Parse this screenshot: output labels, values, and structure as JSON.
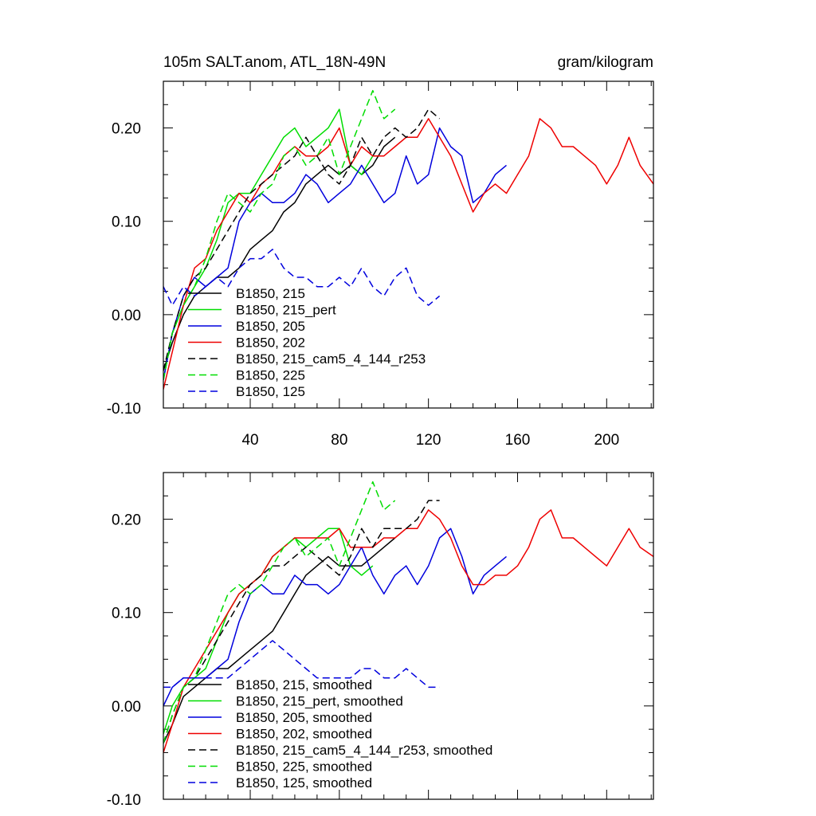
{
  "chart_data": [
    {
      "type": "line",
      "title_left": "105m SALT.anom, ATL_18N-49N",
      "title_right": "gram/kilogram",
      "xlabel": "",
      "ylabel": "",
      "xlim": [
        1,
        221
      ],
      "ylim": [
        -0.1,
        0.25
      ],
      "xticks": [
        40,
        80,
        120,
        160,
        200
      ],
      "xtick_labels": [
        "40",
        "80",
        "120",
        "160",
        "200"
      ],
      "yticks": [
        -0.1,
        0.0,
        0.1,
        0.2
      ],
      "ytick_labels": [
        "-0.10",
        "0.00",
        "0.10",
        "0.20"
      ],
      "legend_position": "lower-left",
      "series": [
        {
          "name": "B1850, 215",
          "color": "#000000",
          "dash": "solid",
          "x": [
            1,
            5,
            10,
            15,
            20,
            25,
            30,
            35,
            40,
            45,
            50,
            55,
            60,
            65,
            70,
            75,
            80,
            85,
            90,
            95,
            100,
            105
          ],
          "y": [
            -0.06,
            -0.03,
            0.0,
            0.02,
            0.03,
            0.04,
            0.04,
            0.05,
            0.07,
            0.08,
            0.09,
            0.11,
            0.12,
            0.14,
            0.15,
            0.16,
            0.15,
            0.16,
            0.15,
            0.16,
            0.18,
            0.19
          ]
        },
        {
          "name": "B1850, 215_pert",
          "color": "#00dd00",
          "dash": "solid",
          "x": [
            1,
            5,
            10,
            15,
            20,
            25,
            30,
            35,
            40,
            45,
            50,
            55,
            60,
            65,
            70,
            75,
            80,
            85,
            90,
            95
          ],
          "y": [
            -0.07,
            -0.02,
            0.01,
            0.03,
            0.05,
            0.08,
            0.12,
            0.13,
            0.13,
            0.15,
            0.17,
            0.19,
            0.2,
            0.18,
            0.19,
            0.2,
            0.22,
            0.16,
            0.15,
            0.17
          ]
        },
        {
          "name": "B1850, 205",
          "color": "#0000dd",
          "dash": "solid",
          "x": [
            1,
            5,
            10,
            15,
            20,
            25,
            30,
            35,
            40,
            45,
            50,
            55,
            60,
            65,
            70,
            75,
            80,
            85,
            90,
            95,
            100,
            105,
            110,
            115,
            120,
            125,
            130,
            135,
            140,
            145,
            150,
            155
          ],
          "y": [
            -0.07,
            -0.02,
            0.02,
            0.04,
            0.03,
            0.04,
            0.05,
            0.1,
            0.12,
            0.13,
            0.12,
            0.12,
            0.13,
            0.15,
            0.14,
            0.12,
            0.13,
            0.14,
            0.16,
            0.14,
            0.12,
            0.13,
            0.17,
            0.14,
            0.15,
            0.2,
            0.18,
            0.17,
            0.12,
            0.13,
            0.15,
            0.16
          ]
        },
        {
          "name": "B1850, 202",
          "color": "#ee0000",
          "dash": "solid",
          "x": [
            1,
            5,
            10,
            15,
            20,
            25,
            30,
            35,
            40,
            45,
            50,
            55,
            60,
            65,
            70,
            75,
            80,
            85,
            90,
            95,
            100,
            105,
            110,
            115,
            120,
            125,
            130,
            135,
            140,
            145,
            150,
            155,
            160,
            165,
            170,
            175,
            180,
            185,
            190,
            195,
            200,
            205,
            210,
            215,
            221
          ],
          "y": [
            -0.08,
            -0.04,
            0.01,
            0.05,
            0.06,
            0.09,
            0.11,
            0.13,
            0.12,
            0.14,
            0.15,
            0.17,
            0.18,
            0.17,
            0.17,
            0.18,
            0.2,
            0.16,
            0.18,
            0.17,
            0.17,
            0.18,
            0.19,
            0.19,
            0.21,
            0.19,
            0.17,
            0.14,
            0.11,
            0.13,
            0.14,
            0.13,
            0.15,
            0.17,
            0.21,
            0.2,
            0.18,
            0.18,
            0.17,
            0.16,
            0.14,
            0.16,
            0.19,
            0.16,
            0.14
          ]
        },
        {
          "name": "B1850, 215_cam5_4_144_r253",
          "color": "#000000",
          "dash": "dashed",
          "x": [
            1,
            5,
            10,
            15,
            20,
            25,
            30,
            35,
            40,
            45,
            50,
            55,
            60,
            65,
            70,
            75,
            80,
            85,
            90,
            95,
            100,
            105,
            110,
            115,
            120,
            125
          ],
          "y": [
            -0.06,
            -0.02,
            0.02,
            0.04,
            0.05,
            0.07,
            0.09,
            0.11,
            0.13,
            0.14,
            0.15,
            0.16,
            0.17,
            0.19,
            0.17,
            0.15,
            0.14,
            0.16,
            0.19,
            0.17,
            0.19,
            0.2,
            0.19,
            0.2,
            0.22,
            0.21
          ]
        },
        {
          "name": "B1850, 225",
          "color": "#00dd00",
          "dash": "dashed",
          "x": [
            1,
            5,
            10,
            15,
            20,
            25,
            30,
            35,
            40,
            45,
            50,
            55,
            60,
            65,
            70,
            75,
            80,
            85,
            90,
            95,
            100,
            105
          ],
          "y": [
            -0.07,
            -0.02,
            0.01,
            0.03,
            0.06,
            0.1,
            0.13,
            0.12,
            0.11,
            0.13,
            0.14,
            0.17,
            0.18,
            0.16,
            0.17,
            0.19,
            0.15,
            0.18,
            0.21,
            0.24,
            0.21,
            0.22
          ]
        },
        {
          "name": "B1850, 125",
          "color": "#0000dd",
          "dash": "dashed",
          "x": [
            1,
            5,
            10,
            15,
            20,
            25,
            30,
            35,
            40,
            45,
            50,
            55,
            60,
            65,
            70,
            75,
            80,
            85,
            90,
            95,
            100,
            105,
            110,
            115,
            120,
            125
          ],
          "y": [
            0.03,
            0.01,
            0.03,
            0.02,
            0.03,
            0.04,
            0.03,
            0.05,
            0.06,
            0.06,
            0.07,
            0.05,
            0.04,
            0.04,
            0.03,
            0.03,
            0.04,
            0.03,
            0.05,
            0.03,
            0.02,
            0.04,
            0.05,
            0.02,
            0.01,
            0.02
          ]
        }
      ]
    },
    {
      "type": "line",
      "xlabel": "",
      "ylabel": "",
      "xlim": [
        1,
        221
      ],
      "ylim": [
        -0.1,
        0.25
      ],
      "xticks": [
        40,
        80,
        120,
        160,
        200
      ],
      "yticks": [
        -0.1,
        0.0,
        0.1,
        0.2
      ],
      "ytick_labels": [
        "-0.10",
        "0.00",
        "0.10",
        "0.20"
      ],
      "legend_position": "lower-left",
      "series": [
        {
          "name": "B1850, 215, smoothed",
          "color": "#000000",
          "dash": "solid",
          "x": [
            1,
            5,
            10,
            15,
            20,
            25,
            30,
            35,
            40,
            45,
            50,
            55,
            60,
            65,
            70,
            75,
            80,
            85,
            90,
            95,
            100,
            105
          ],
          "y": [
            -0.04,
            -0.02,
            0.01,
            0.02,
            0.03,
            0.04,
            0.04,
            0.05,
            0.06,
            0.07,
            0.08,
            0.1,
            0.12,
            0.14,
            0.15,
            0.16,
            0.15,
            0.15,
            0.15,
            0.16,
            0.17,
            0.18
          ]
        },
        {
          "name": "B1850, 215_pert, smoothed",
          "color": "#00dd00",
          "dash": "solid",
          "x": [
            1,
            5,
            10,
            15,
            20,
            25,
            30,
            35,
            40,
            45,
            50,
            55,
            60,
            65,
            70,
            75,
            80,
            85,
            90,
            95
          ],
          "y": [
            -0.03,
            0.0,
            0.02,
            0.03,
            0.04,
            0.07,
            0.1,
            0.12,
            0.13,
            0.14,
            0.16,
            0.17,
            0.18,
            0.17,
            0.18,
            0.19,
            0.19,
            0.15,
            0.14,
            0.15
          ]
        },
        {
          "name": "B1850, 205, smoothed",
          "color": "#0000dd",
          "dash": "solid",
          "x": [
            1,
            5,
            10,
            15,
            20,
            25,
            30,
            35,
            40,
            45,
            50,
            55,
            60,
            65,
            70,
            75,
            80,
            85,
            90,
            95,
            100,
            105,
            110,
            115,
            120,
            125,
            130,
            135,
            140,
            145,
            150,
            155
          ],
          "y": [
            0.0,
            0.02,
            0.03,
            0.03,
            0.03,
            0.04,
            0.05,
            0.09,
            0.12,
            0.13,
            0.12,
            0.12,
            0.14,
            0.13,
            0.13,
            0.12,
            0.13,
            0.15,
            0.17,
            0.14,
            0.12,
            0.14,
            0.15,
            0.13,
            0.15,
            0.18,
            0.19,
            0.16,
            0.12,
            0.14,
            0.15,
            0.16
          ]
        },
        {
          "name": "B1850, 202, smoothed",
          "color": "#ee0000",
          "dash": "solid",
          "x": [
            1,
            5,
            10,
            15,
            20,
            25,
            30,
            35,
            40,
            45,
            50,
            55,
            60,
            65,
            70,
            75,
            80,
            85,
            90,
            95,
            100,
            105,
            110,
            115,
            120,
            125,
            130,
            135,
            140,
            145,
            150,
            155,
            160,
            165,
            170,
            175,
            180,
            185,
            190,
            195,
            200,
            205,
            210,
            215,
            221
          ],
          "y": [
            -0.05,
            -0.02,
            0.02,
            0.04,
            0.06,
            0.08,
            0.1,
            0.12,
            0.13,
            0.14,
            0.16,
            0.17,
            0.18,
            0.18,
            0.18,
            0.18,
            0.19,
            0.17,
            0.17,
            0.17,
            0.18,
            0.18,
            0.19,
            0.19,
            0.21,
            0.2,
            0.18,
            0.15,
            0.13,
            0.13,
            0.14,
            0.14,
            0.15,
            0.17,
            0.2,
            0.21,
            0.18,
            0.18,
            0.17,
            0.16,
            0.15,
            0.17,
            0.19,
            0.17,
            0.16
          ]
        },
        {
          "name": "B1850, 215_cam5_4_144_r253, smoothed",
          "color": "#000000",
          "dash": "dashed",
          "x": [
            1,
            5,
            10,
            15,
            20,
            25,
            30,
            35,
            40,
            45,
            50,
            55,
            60,
            65,
            70,
            75,
            80,
            85,
            90,
            95,
            100,
            105,
            110,
            115,
            120,
            125
          ],
          "y": [
            -0.04,
            -0.01,
            0.02,
            0.03,
            0.05,
            0.07,
            0.09,
            0.11,
            0.13,
            0.14,
            0.15,
            0.15,
            0.16,
            0.17,
            0.16,
            0.15,
            0.14,
            0.16,
            0.19,
            0.17,
            0.19,
            0.19,
            0.19,
            0.2,
            0.22,
            0.22
          ]
        },
        {
          "name": "B1850, 225, smoothed",
          "color": "#00dd00",
          "dash": "dashed",
          "x": [
            1,
            5,
            10,
            15,
            20,
            25,
            30,
            35,
            40,
            45,
            50,
            55,
            60,
            65,
            70,
            75,
            80,
            85,
            90,
            95,
            100,
            105
          ],
          "y": [
            -0.04,
            -0.01,
            0.02,
            0.03,
            0.06,
            0.09,
            0.12,
            0.13,
            0.12,
            0.13,
            0.15,
            0.17,
            0.18,
            0.16,
            0.17,
            0.18,
            0.15,
            0.18,
            0.21,
            0.24,
            0.21,
            0.22
          ]
        },
        {
          "name": "B1850, 125, smoothed",
          "color": "#0000dd",
          "dash": "dashed",
          "x": [
            1,
            5,
            10,
            15,
            20,
            25,
            30,
            35,
            40,
            45,
            50,
            55,
            60,
            65,
            70,
            75,
            80,
            85,
            90,
            95,
            100,
            105,
            110,
            115,
            120,
            125
          ],
          "y": [
            0.02,
            0.02,
            0.03,
            0.03,
            0.03,
            0.03,
            0.03,
            0.04,
            0.05,
            0.06,
            0.07,
            0.06,
            0.05,
            0.04,
            0.03,
            0.03,
            0.03,
            0.03,
            0.04,
            0.04,
            0.03,
            0.03,
            0.04,
            0.03,
            0.02,
            0.02
          ]
        }
      ]
    }
  ]
}
